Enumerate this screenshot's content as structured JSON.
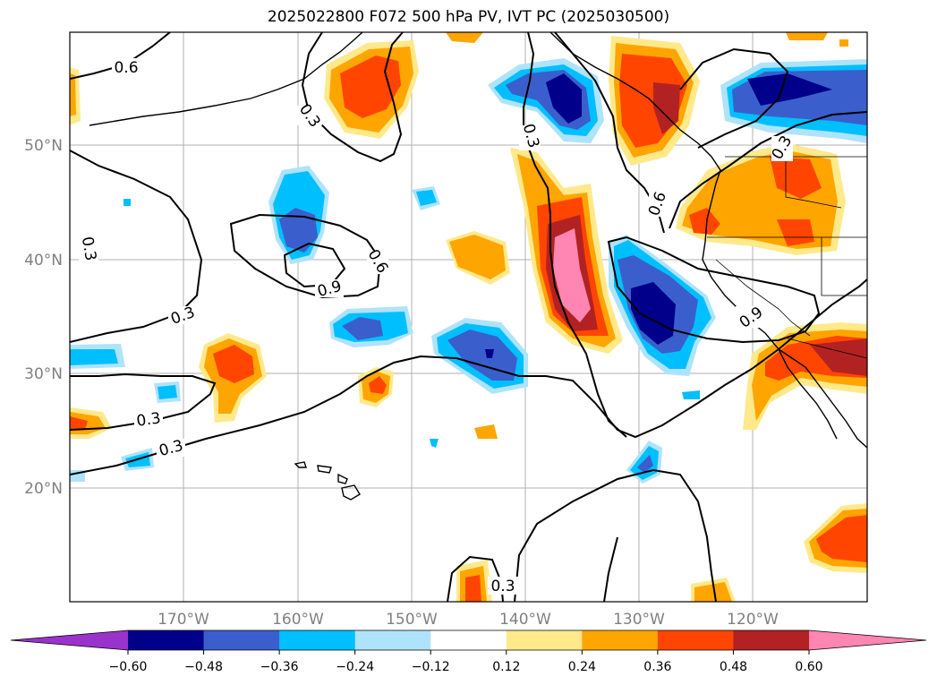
{
  "title": "2025022800 F072 500 hPa PV, IVT PC (2025030500)",
  "latitude_labels": [
    "50°N",
    "40°N",
    "30°N",
    "20°N"
  ],
  "longitude_labels": [
    "170°W",
    "160°W",
    "150°W",
    "140°W",
    "130°W",
    "120°W"
  ],
  "colorbar": {
    "ticks": [
      "−0.60",
      "−0.48",
      "−0.36",
      "−0.24",
      "−0.12",
      "0.12",
      "0.24",
      "0.36",
      "0.48",
      "0.60"
    ],
    "colors": [
      "#9933cc",
      "#00008b",
      "#3a5fcd",
      "#00bfff",
      "#aee3fb",
      "#ffffff",
      "#ffe98a",
      "#ffa500",
      "#ff4500",
      "#b22222",
      "#ff85b3"
    ]
  },
  "contour_labels": [
    "0.6",
    "0.3",
    "0.3",
    "0.3",
    "0.6",
    "0.9",
    "0.3",
    "0.3",
    "0.3",
    "0.6",
    "0.3",
    "0.9",
    "0.3"
  ]
}
